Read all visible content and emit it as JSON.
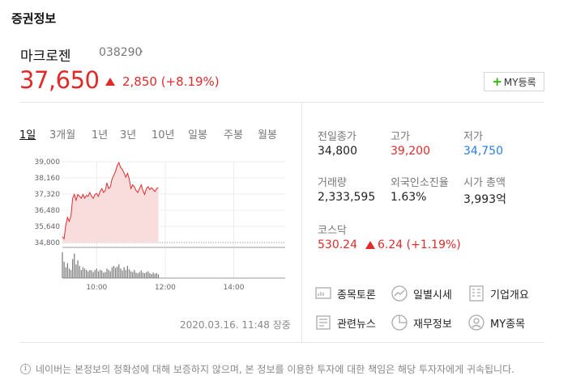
{
  "section_title": "증권정보",
  "stock": {
    "name": "마크로젠",
    "code": "038290",
    "price": "37,650",
    "change": "2,850 (+8.19%)"
  },
  "my_button": {
    "label": "MY등록"
  },
  "period_tabs": [
    "1일",
    "3개월",
    "1년",
    "3년",
    "10년",
    "일봉",
    "주봉",
    "월봉"
  ],
  "active_tab": "1일",
  "chart_data": {
    "type": "line",
    "title": "",
    "yticks": [
      "39,000",
      "38,160",
      "37,320",
      "36,480",
      "35,640",
      "34,800"
    ],
    "ylim": [
      34800,
      39000
    ],
    "xticks": [
      "10:00",
      "12:00",
      "14:00"
    ],
    "previous_close": 34800,
    "x": [
      "09:00",
      "09:03",
      "09:06",
      "09:09",
      "09:12",
      "09:15",
      "09:18",
      "09:21",
      "09:24",
      "09:27",
      "09:30",
      "09:33",
      "09:36",
      "09:39",
      "09:42",
      "09:45",
      "09:48",
      "09:51",
      "09:54",
      "09:57",
      "10:00",
      "10:03",
      "10:06",
      "10:09",
      "10:12",
      "10:15",
      "10:18",
      "10:21",
      "10:24",
      "10:27",
      "10:30",
      "10:33",
      "10:36",
      "10:39",
      "10:42",
      "10:45",
      "10:48",
      "10:51",
      "10:54",
      "10:57",
      "11:00",
      "11:03",
      "11:06",
      "11:09",
      "11:12",
      "11:15",
      "11:18",
      "11:21",
      "11:24",
      "11:27",
      "11:30",
      "11:33",
      "11:36",
      "11:39",
      "11:42",
      "11:45",
      "11:48"
    ],
    "values": [
      35100,
      35000,
      35700,
      36100,
      35900,
      36200,
      37100,
      37300,
      37000,
      37300,
      37200,
      37100,
      37300,
      37100,
      37250,
      37200,
      37400,
      37200,
      37100,
      37300,
      37350,
      37200,
      37450,
      37600,
      37400,
      37500,
      37900,
      37600,
      37700,
      38100,
      38300,
      38500,
      38800,
      38950,
      38700,
      38600,
      38400,
      38200,
      38400,
      38100,
      37600,
      37800,
      37700,
      37500,
      37400,
      37600,
      37800,
      37500,
      37300,
      37600,
      37700,
      37550,
      37650,
      37550,
      37450,
      37600,
      37650
    ],
    "volume": [
      95,
      60,
      40,
      55,
      35,
      30,
      70,
      90,
      50,
      65,
      45,
      30,
      40,
      35,
      30,
      25,
      30,
      28,
      22,
      30,
      35,
      25,
      30,
      28,
      20,
      22,
      35,
      30,
      25,
      40,
      45,
      38,
      42,
      50,
      35,
      28,
      40,
      30,
      45,
      32,
      25,
      22,
      30,
      20,
      18,
      22,
      28,
      20,
      18,
      22,
      25,
      18,
      15,
      20,
      16,
      18,
      14
    ]
  },
  "stats": [
    {
      "label": "전일종가",
      "value": "34,800",
      "color": "normal"
    },
    {
      "label": "고가",
      "value": "39,200",
      "color": "red"
    },
    {
      "label": "저가",
      "value": "34,750",
      "color": "blue"
    },
    {
      "label": "거래량",
      "value": "2,333,595",
      "color": "normal"
    },
    {
      "label": "외국인소진율",
      "value": "1.63%",
      "color": "normal"
    },
    {
      "label": "시가 총액",
      "value": "3,993억",
      "color": "normal"
    }
  ],
  "market": {
    "label": "코스닥",
    "value": "530.24",
    "change": "6.24 (+1.19%)"
  },
  "links": [
    {
      "label": "종목토론",
      "icon": "discussion-icon"
    },
    {
      "label": "일별시세",
      "icon": "trend-icon"
    },
    {
      "label": "기업개요",
      "icon": "company-icon"
    },
    {
      "label": "관련뉴스",
      "icon": "news-icon"
    },
    {
      "label": "재무정보",
      "icon": "pie-chart-icon"
    },
    {
      "label": "MY종목",
      "icon": "person-icon"
    }
  ],
  "timestamp": "2020.03.16. 11:48 장중",
  "disclaimer": "네이버는 본정보의 정확성에 대해 보증하지 않으며, 본 정보를 이용한 투자에 대한 책임은 해당 투자자에게 귀속됩니다.",
  "colors": {
    "up": "#e12a2a",
    "down": "#2a7de1",
    "fill": "#f9dcdc"
  }
}
